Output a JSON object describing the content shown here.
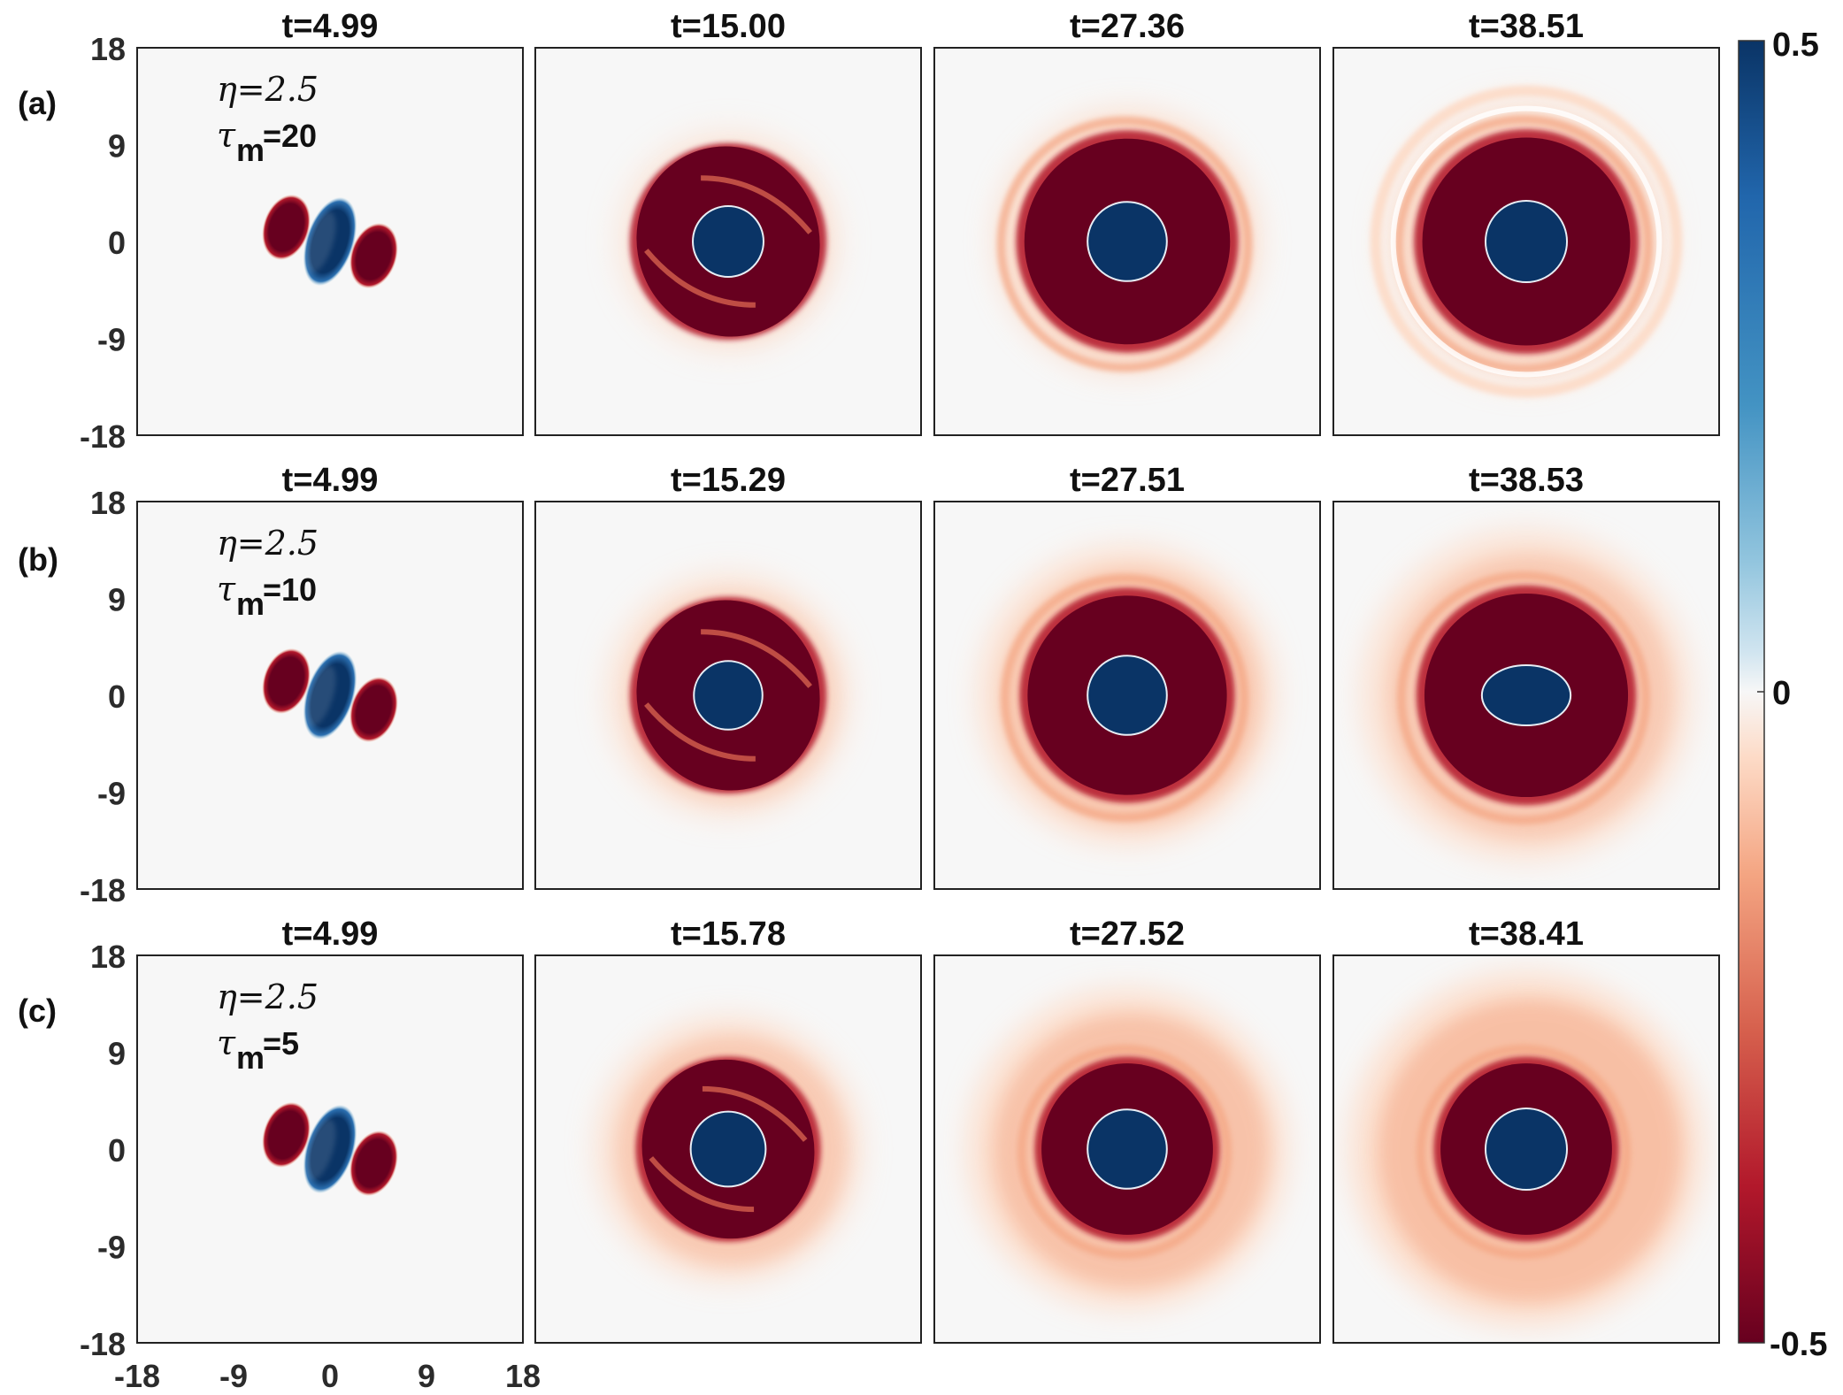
{
  "chart_data": {
    "type": "heatmap",
    "description_fields": {
      "x_axis": {
        "ticks": [
          "-18",
          "-9",
          "0",
          "9",
          "18"
        ],
        "range": [
          -18,
          18
        ]
      },
      "y_axis": {
        "ticks": [
          "18",
          "9",
          "0",
          "-9",
          "-18"
        ],
        "range": [
          -18,
          18
        ]
      }
    },
    "colorbar": {
      "range": [
        -0.5,
        0.5
      ],
      "ticks": [
        "0.5",
        "0",
        "-0.5"
      ],
      "colors": {
        "max": "#0a3466",
        "mid": "#f7f7f7",
        "min": "#67001f"
      }
    },
    "rows": [
      {
        "label": "(a)",
        "eta_label": "η=2.5",
        "tau_symbol": "τ",
        "tau_subscript": "m",
        "tau_value": "=20",
        "times": [
          "t=4.99",
          "t=15.00",
          "t=27.36",
          "t=38.51"
        ],
        "stages": [
          {
            "stage": 0,
            "core_radius": 0,
            "ring_radius": 0,
            "halo_radius": 0,
            "halo_strength": 0
          },
          {
            "stage": 1,
            "core_radius": 3.3,
            "ring_radius": 8.5,
            "halo_radius": 10.5,
            "halo_strength": 0.25
          },
          {
            "stage": 2,
            "core_radius": 3.7,
            "ring_radius": 9.6,
            "halo_radius": 12.5,
            "halo_strength": 0.45
          },
          {
            "stage": 3,
            "core_radius": 3.8,
            "ring_radius": 9.7,
            "halo_radius": 13.5,
            "halo_strength": 0.35
          }
        ]
      },
      {
        "label": "(b)",
        "eta_label": "η=2.5",
        "tau_symbol": "τ",
        "tau_subscript": "m",
        "tau_value": "=10",
        "times": [
          "t=4.99",
          "t=15.29",
          "t=27.51",
          "t=38.53"
        ],
        "stages": [
          {
            "stage": 0,
            "core_radius": 0,
            "ring_radius": 0,
            "halo_radius": 0,
            "halo_strength": 0
          },
          {
            "stage": 1,
            "core_radius": 3.2,
            "ring_radius": 8.5,
            "halo_radius": 11.5,
            "halo_strength": 0.35
          },
          {
            "stage": 2,
            "core_radius": 3.7,
            "ring_radius": 9.3,
            "halo_radius": 14,
            "halo_strength": 0.5
          },
          {
            "stage": 3,
            "core_radius": 3.6,
            "ring_radius": 9.5,
            "halo_radius": 15.5,
            "halo_strength": 0.45
          }
        ]
      },
      {
        "label": "(c)",
        "eta_label": "η=2.5",
        "tau_symbol": "τ",
        "tau_subscript": "m",
        "tau_value": "=5",
        "times": [
          "t=4.99",
          "t=15.78",
          "t=27.52",
          "t=38.41"
        ],
        "stages": [
          {
            "stage": 0,
            "core_radius": 0,
            "ring_radius": 0,
            "halo_radius": 0,
            "halo_strength": 0
          },
          {
            "stage": 1,
            "core_radius": 3.5,
            "ring_radius": 8.0,
            "halo_radius": 12.5,
            "halo_strength": 0.45
          },
          {
            "stage": 2,
            "core_radius": 3.7,
            "ring_radius": 8.0,
            "halo_radius": 15,
            "halo_strength": 0.55
          },
          {
            "stage": 3,
            "core_radius": 3.8,
            "ring_radius": 8.0,
            "halo_radius": 16.5,
            "halo_strength": 0.6
          }
        ]
      }
    ]
  }
}
